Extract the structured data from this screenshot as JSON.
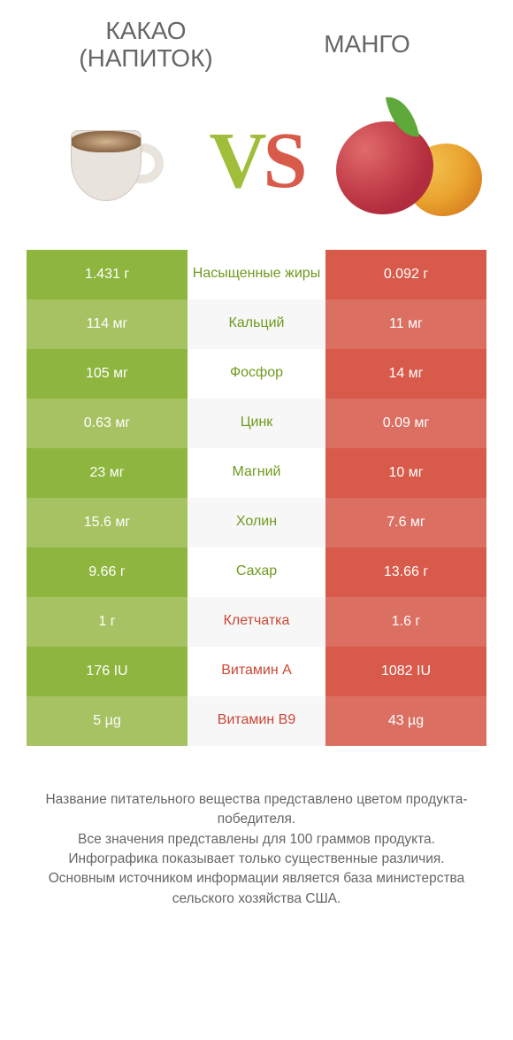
{
  "colors": {
    "green_main": "#8eb53d",
    "green_alt": "#a7c263",
    "red_main": "#d85a4a",
    "red_alt": "#db6f62",
    "label_green": "#6f9a1e",
    "label_red": "#c94736",
    "white_row": "#ffffff",
    "gray_row": "#f7f7f7",
    "text": "#666666"
  },
  "header": {
    "left_line1": "Какао",
    "left_line2": "(напиток)",
    "right": "Манго"
  },
  "vs": {
    "letter1": "V",
    "letter2": "S"
  },
  "rows": [
    {
      "label": "Насыщенные жиры",
      "left": "1.431 г",
      "right": "0.092 г",
      "winner": "left"
    },
    {
      "label": "Кальций",
      "left": "114 мг",
      "right": "11 мг",
      "winner": "left"
    },
    {
      "label": "Фосфор",
      "left": "105 мг",
      "right": "14 мг",
      "winner": "left"
    },
    {
      "label": "Цинк",
      "left": "0.63 мг",
      "right": "0.09 мг",
      "winner": "left"
    },
    {
      "label": "Магний",
      "left": "23 мг",
      "right": "10 мг",
      "winner": "left"
    },
    {
      "label": "Холин",
      "left": "15.6 мг",
      "right": "7.6 мг",
      "winner": "left"
    },
    {
      "label": "Сахар",
      "left": "9.66 г",
      "right": "13.66 г",
      "winner": "left"
    },
    {
      "label": "Клетчатка",
      "left": "1 г",
      "right": "1.6 г",
      "winner": "right"
    },
    {
      "label": "Витамин A",
      "left": "176 IU",
      "right": "1082 IU",
      "winner": "right"
    },
    {
      "label": "Витамин B9",
      "left": "5 µg",
      "right": "43 µg",
      "winner": "right"
    }
  ],
  "footer": {
    "l1": "Название питательного вещества представлено цветом продукта-победителя.",
    "l2": "Все значения представлены для 100 граммов продукта.",
    "l3": "Инфографика показывает только существенные различия.",
    "l4": "Основным источником информации является база министерства сельского хозяйства США."
  }
}
